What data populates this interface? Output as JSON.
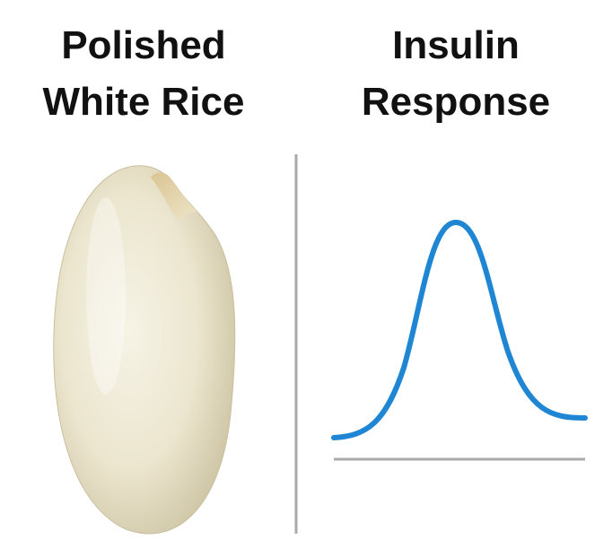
{
  "left": {
    "title_lines": [
      "Polished",
      "White Rice"
    ]
  },
  "right": {
    "title_lines": [
      "Insulin",
      "Response"
    ]
  }
}
